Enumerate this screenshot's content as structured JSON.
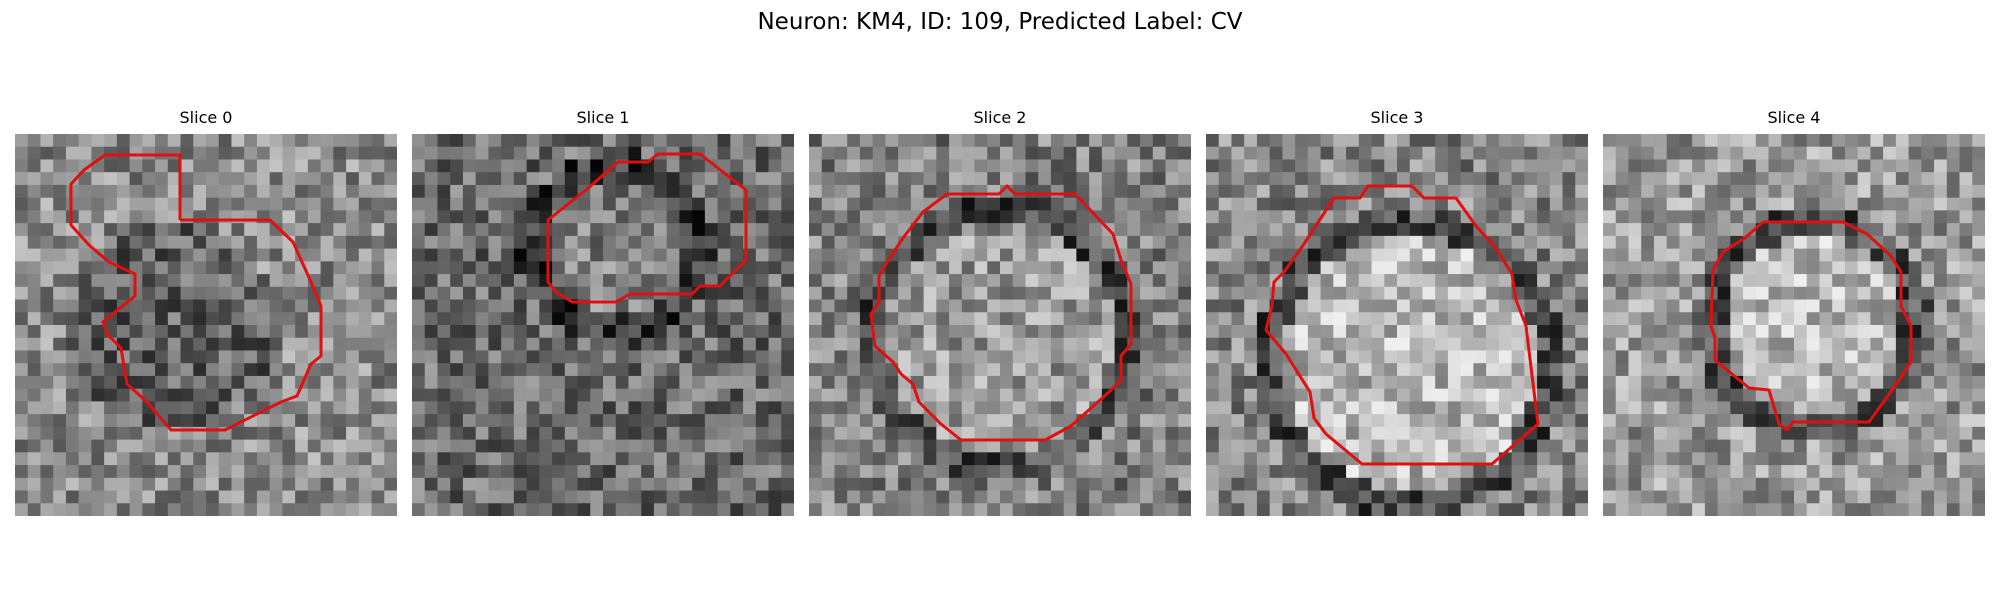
{
  "figure": {
    "title": "Neuron: KM4, ID: 109, Predicted Label: CV",
    "outline_color": "#e01010"
  },
  "slices": [
    {
      "title": "Slice 0"
    },
    {
      "title": "Slice 1"
    },
    {
      "title": "Slice 2"
    },
    {
      "title": "Slice 3"
    },
    {
      "title": "Slice 4"
    }
  ]
}
